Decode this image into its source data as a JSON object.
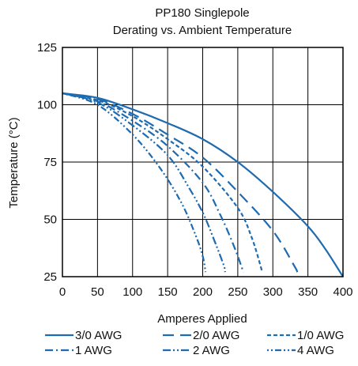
{
  "chart_data": {
    "type": "line",
    "title": "PP180 Singlepole",
    "subtitle": "Derating vs. Ambient Temperature",
    "xlabel": "Amperes Applied",
    "ylabel": "Temperature (°C)",
    "xlim": [
      0,
      400
    ],
    "ylim": [
      25,
      125
    ],
    "x_ticks": [
      "0",
      "50",
      "100",
      "150",
      "200",
      "250",
      "300",
      "350",
      "400"
    ],
    "y_ticks": [
      "25",
      "50",
      "75",
      "100",
      "125"
    ],
    "grid": true,
    "legend_position": "bottom",
    "line_color": "#1f6bb0",
    "series": [
      {
        "name": "3/0 AWG",
        "dash": "solid",
        "points": [
          [
            0,
            105
          ],
          [
            50,
            103
          ],
          [
            100,
            98
          ],
          [
            150,
            92
          ],
          [
            200,
            85
          ],
          [
            250,
            75
          ],
          [
            300,
            62
          ],
          [
            350,
            47
          ],
          [
            375,
            37
          ],
          [
            400,
            25
          ]
        ]
      },
      {
        "name": "2/0 AWG",
        "dash": "long-dash",
        "points": [
          [
            0,
            105
          ],
          [
            50,
            102.5
          ],
          [
            100,
            96
          ],
          [
            150,
            87
          ],
          [
            200,
            77
          ],
          [
            250,
            62
          ],
          [
            300,
            45
          ],
          [
            330,
            30
          ],
          [
            335,
            27
          ]
        ]
      },
      {
        "name": "1/0 AWG",
        "dash": "short-dash",
        "points": [
          [
            0,
            105
          ],
          [
            50,
            102
          ],
          [
            100,
            95
          ],
          [
            150,
            85
          ],
          [
            200,
            73
          ],
          [
            250,
            55
          ],
          [
            270,
            42
          ],
          [
            285,
            27
          ]
        ]
      },
      {
        "name": "1 AWG",
        "dash": "dash-dot",
        "points": [
          [
            0,
            105
          ],
          [
            50,
            101.5
          ],
          [
            100,
            93
          ],
          [
            150,
            82
          ],
          [
            200,
            66
          ],
          [
            225,
            52
          ],
          [
            245,
            38
          ],
          [
            258,
            27
          ]
        ]
      },
      {
        "name": "2 AWG",
        "dash": "dash-dot-dot",
        "points": [
          [
            0,
            105
          ],
          [
            50,
            101
          ],
          [
            100,
            91
          ],
          [
            150,
            78
          ],
          [
            180,
            64
          ],
          [
            200,
            53
          ],
          [
            215,
            42
          ],
          [
            230,
            30
          ],
          [
            232,
            27
          ]
        ]
      },
      {
        "name": "4 AWG",
        "dash": "dot-dot-dash",
        "points": [
          [
            0,
            105
          ],
          [
            50,
            100
          ],
          [
            100,
            87
          ],
          [
            140,
            72
          ],
          [
            170,
            57
          ],
          [
            190,
            43
          ],
          [
            200,
            34
          ],
          [
            204,
            27
          ]
        ]
      }
    ]
  }
}
